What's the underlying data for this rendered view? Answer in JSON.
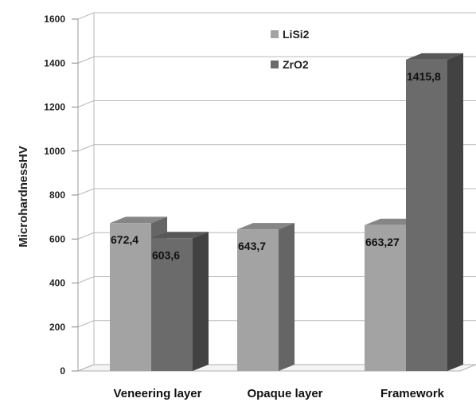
{
  "chart_data": {
    "type": "bar",
    "categories": [
      "Veneering layer",
      "Opaque layer",
      "Framework"
    ],
    "ylabel": "MicrohardnessHV",
    "xlabel": "",
    "ylim": [
      0,
      1600
    ],
    "yticks": [
      0,
      200,
      400,
      600,
      800,
      1000,
      1200,
      1400,
      1600
    ],
    "grid": true,
    "legend_position": "top-center",
    "series": [
      {
        "name": "LiSi2",
        "color": "#a3a3a3",
        "values": [
          672.4,
          643.7,
          663.27
        ],
        "labels": [
          "672,4",
          "643,7",
          "663,27"
        ]
      },
      {
        "name": "ZrO2",
        "color": "#6b6b6b",
        "values": [
          603.6,
          null,
          1415.8
        ],
        "labels": [
          "603,6",
          "",
          "1415,8"
        ]
      }
    ]
  }
}
